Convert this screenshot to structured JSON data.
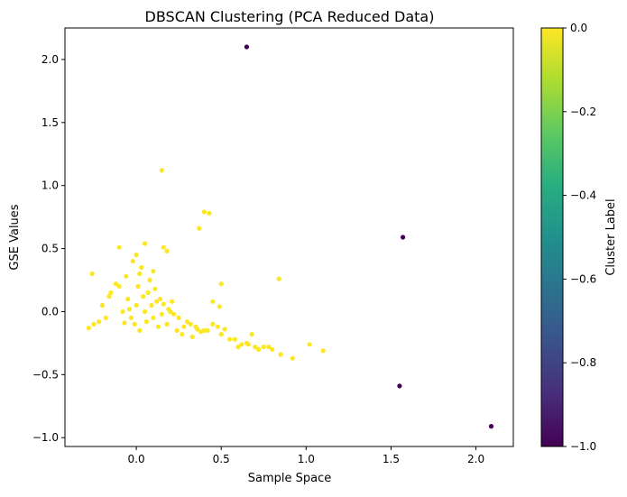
{
  "chart_data": {
    "type": "scatter",
    "title": "DBSCAN Clustering (PCA Reduced Data)",
    "xlabel": "Sample Space",
    "ylabel": "GSE Values",
    "xlim": [
      -0.42,
      2.22
    ],
    "ylim": [
      -1.07,
      2.25
    ],
    "xticks": [
      0.0,
      0.5,
      1.0,
      1.5,
      2.0
    ],
    "xtick_labels": [
      "0.0",
      "0.5",
      "1.0",
      "1.5",
      "2.0"
    ],
    "yticks": [
      -1.0,
      -0.5,
      0.0,
      0.5,
      1.0,
      1.5,
      2.0
    ],
    "ytick_labels": [
      "−1.0",
      "−0.5",
      "0.0",
      "0.5",
      "1.0",
      "1.5",
      "2.0"
    ],
    "grid": false,
    "colorbar": {
      "label": "Cluster Label",
      "range": [
        -1.0,
        0.0
      ],
      "colormap": "viridis",
      "ticks": [
        0.0,
        -0.2,
        -0.4,
        -0.6,
        -0.8,
        -1.0
      ],
      "tick_labels": [
        "0.0",
        "−0.2",
        "−0.4",
        "−0.6",
        "−0.8",
        "−1.0"
      ]
    },
    "series": [
      {
        "cluster": 0,
        "color": "#fde725",
        "x": [
          0.0,
          -0.05,
          0.05,
          -0.1,
          0.1,
          0.02,
          -0.03,
          0.07,
          -0.08,
          0.12,
          0.15,
          -0.15,
          0.18,
          -0.2,
          0.2,
          0.25,
          -0.25,
          0.3,
          0.35,
          0.4,
          0.45,
          0.5,
          0.03,
          -0.02,
          0.08,
          -0.06,
          0.11,
          -0.12,
          0.14,
          0.06,
          0.01,
          -0.01,
          0.04,
          0.09,
          -0.04,
          0.16,
          -0.18,
          0.22,
          0.28,
          0.32,
          0.38,
          0.42,
          -0.28,
          -0.22,
          0.55,
          0.6,
          0.65,
          0.7,
          0.72,
          0.75,
          0.8,
          0.85,
          0.92,
          1.02,
          1.1,
          0.5,
          0.45,
          0.15,
          0.4,
          0.43,
          0.37,
          0.84,
          0.49,
          0.16,
          0.18,
          0.05,
          0.0,
          -0.1,
          0.1,
          0.02,
          0.13,
          0.24,
          0.27,
          0.33,
          0.36,
          0.48,
          0.52,
          0.58,
          0.62,
          0.68,
          0.66,
          0.78,
          -0.26,
          -0.16,
          -0.07,
          0.19,
          0.21
        ],
        "y": [
          0.05,
          0.1,
          0.0,
          0.2,
          -0.05,
          0.3,
          -0.05,
          0.15,
          0.0,
          0.08,
          -0.02,
          0.15,
          -0.1,
          0.05,
          0.0,
          -0.05,
          -0.1,
          -0.08,
          -0.12,
          -0.15,
          -0.1,
          -0.18,
          0.35,
          0.4,
          0.25,
          0.28,
          0.18,
          0.22,
          0.1,
          -0.08,
          0.2,
          -0.1,
          0.12,
          0.05,
          0.02,
          0.06,
          -0.05,
          -0.02,
          -0.12,
          -0.1,
          -0.16,
          -0.15,
          -0.13,
          -0.08,
          -0.22,
          -0.28,
          -0.25,
          -0.28,
          -0.3,
          -0.28,
          -0.3,
          -0.34,
          -0.37,
          -0.26,
          -0.31,
          0.22,
          0.08,
          1.12,
          0.79,
          0.78,
          0.66,
          0.26,
          0.04,
          0.51,
          0.48,
          0.54,
          0.45,
          0.51,
          0.32,
          -0.15,
          -0.12,
          -0.15,
          -0.18,
          -0.2,
          -0.14,
          -0.12,
          -0.14,
          -0.22,
          -0.26,
          -0.18,
          -0.26,
          -0.28,
          0.3,
          0.12,
          -0.09,
          0.02,
          0.08
        ]
      },
      {
        "cluster": -1,
        "color": "#440154",
        "x": [
          0.65,
          1.57,
          1.55,
          2.09
        ],
        "y": [
          2.1,
          0.59,
          -0.59,
          -0.91
        ]
      }
    ]
  }
}
